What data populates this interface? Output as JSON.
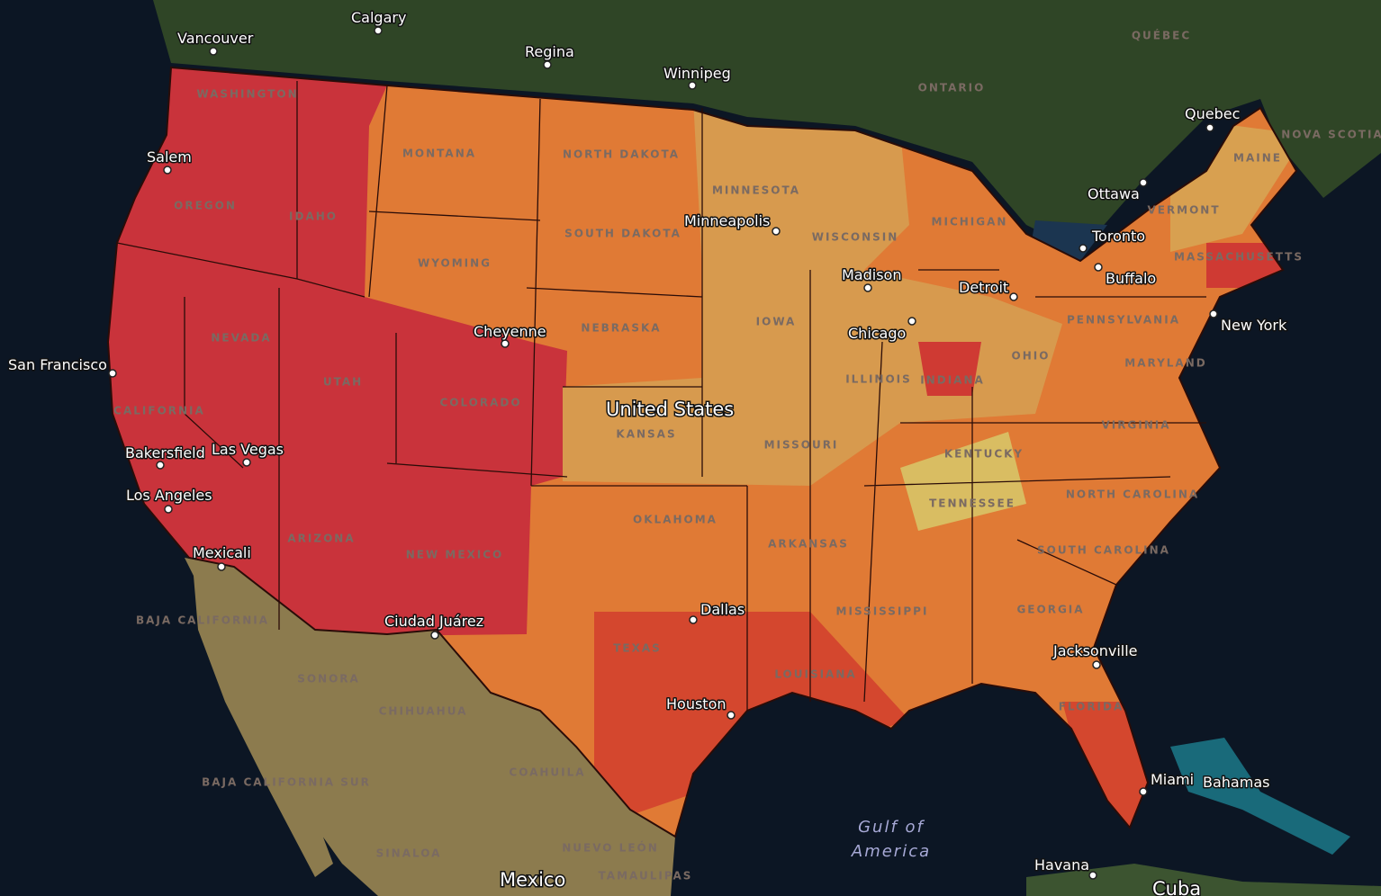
{
  "countries": [
    "United States",
    "Mexico",
    "Cuba"
  ],
  "water": [
    "Gulf of",
    "America"
  ],
  "cities": [
    "Vancouver",
    "Calgary",
    "Regina",
    "Winnipeg",
    "Quebec",
    "Ottawa",
    "Toronto",
    "Buffalo",
    "Detroit",
    "Minneapolis",
    "Madison",
    "Chicago",
    "New York",
    "Salem",
    "San Francisco",
    "Bakersfield",
    "Las Vegas",
    "Los Angeles",
    "Mexicali",
    "Ciudad Juárez",
    "Cheyenne",
    "Dallas",
    "Houston",
    "Jacksonville",
    "Miami",
    "Havana",
    "Bahamas"
  ],
  "regions": [
    "QUÉBEC",
    "ONTARIO",
    "NOVA SCOTIA",
    "WASHINGTON",
    "OREGON",
    "IDAHO",
    "MONTANA",
    "NORTH DAKOTA",
    "SOUTH DAKOTA",
    "WYOMING",
    "MINNESOTA",
    "WISCONSIN",
    "MICHIGAN",
    "NEBRASKA",
    "IOWA",
    "NEVADA",
    "UTAH",
    "COLORADO",
    "CALIFORNIA",
    "KANSAS",
    "MISSOURI",
    "ILLINOIS",
    "INDIANA",
    "OHIO",
    "PENNSYLVANIA",
    "VERMONT",
    "MAINE",
    "MASSACHUSETTS",
    "MARYLAND",
    "VIRGINIA",
    "KENTUCKY",
    "TENNESSEE",
    "NORTH CAROLINA",
    "SOUTH CAROLINA",
    "GEORGIA",
    "MISSISSIPPI",
    "ARKANSAS",
    "OKLAHOMA",
    "TEXAS",
    "LOUISIANA",
    "FLORIDA",
    "ARIZONA",
    "NEW MEXICO",
    "BAJA CALIFORNIA",
    "BAJA CALIFORNIA SUR",
    "SONORA",
    "CHIHUAHUA",
    "COAHUILA",
    "NUEVO LEÓN",
    "SINALOA",
    "TAMAULIPAS"
  ]
}
